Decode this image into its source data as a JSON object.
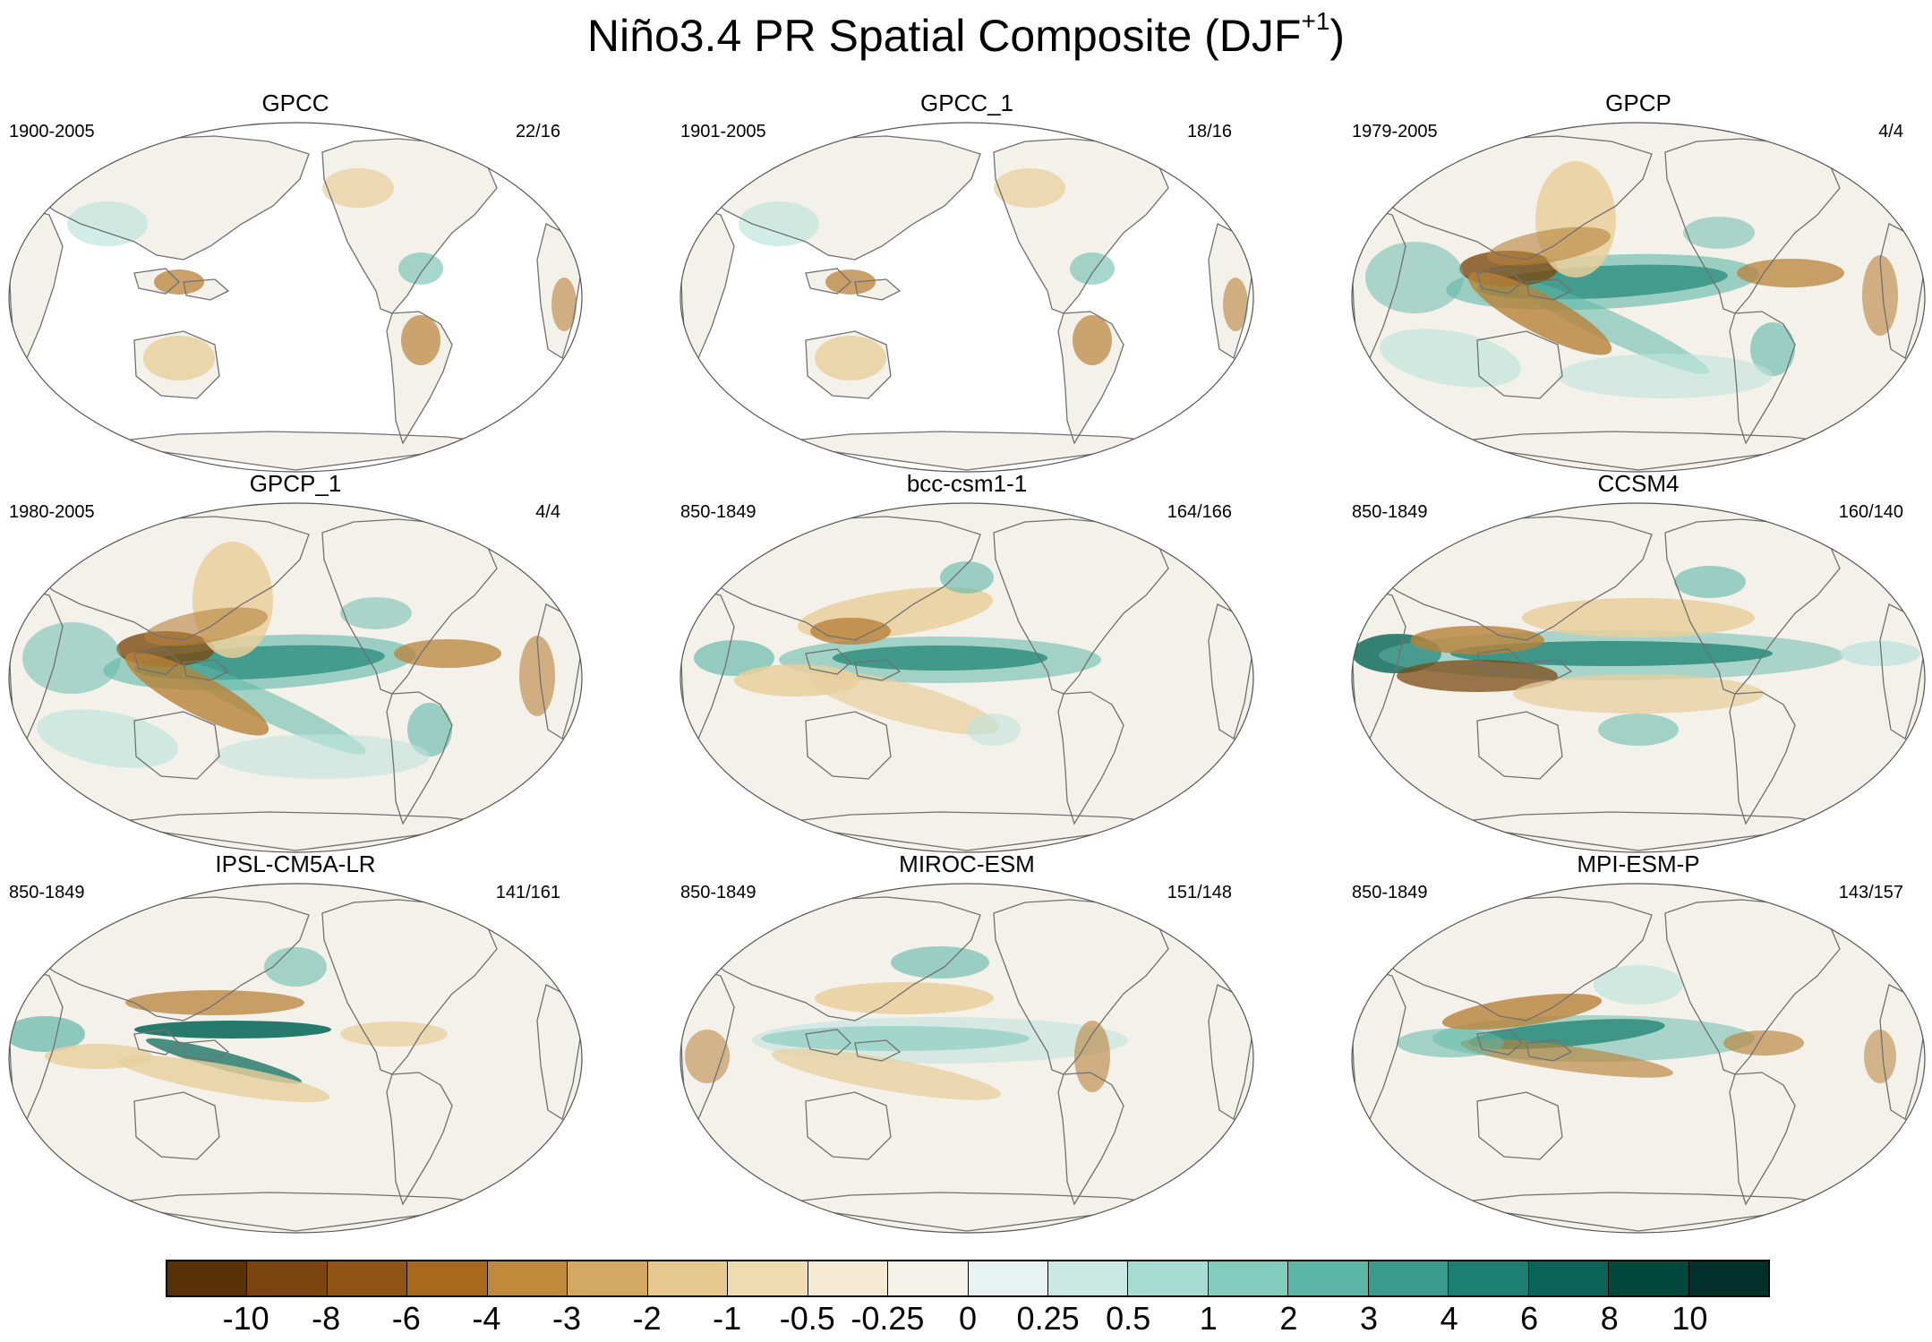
{
  "figure": {
    "title_main": "Niño3.4 PR Spatial Composite (DJF",
    "title_sup": "+1",
    "title_close": ")"
  },
  "palette": {
    "brown_strong": "#7a4a12",
    "brown_mid": "#b8823a",
    "brown_light": "#e8cf9c",
    "teal_light": "#bfe4dc",
    "teal_mid": "#5fb8a8",
    "teal_strong": "#0f6d5e",
    "land_outline": "#707070",
    "ocean_neutral": "#f4f1ea"
  },
  "panels": [
    {
      "name": "GPCC",
      "period": "1900-2005",
      "counts": "22/16",
      "land_only": true
    },
    {
      "name": "GPCC_1",
      "period": "1901-2005",
      "counts": "18/16",
      "land_only": true
    },
    {
      "name": "GPCP",
      "period": "1979-2005",
      "counts": "4/4",
      "land_only": false
    },
    {
      "name": "GPCP_1",
      "period": "1980-2005",
      "counts": "4/4",
      "land_only": false
    },
    {
      "name": "bcc-csm1-1",
      "period": "850-1849",
      "counts": "164/166",
      "land_only": false
    },
    {
      "name": "CCSM4",
      "period": "850-1849",
      "counts": "160/140",
      "land_only": false
    },
    {
      "name": "IPSL-CM5A-LR",
      "period": "850-1849",
      "counts": "141/161",
      "land_only": false
    },
    {
      "name": "MIROC-ESM",
      "period": "850-1849",
      "counts": "151/148",
      "land_only": false
    },
    {
      "name": "MPI-ESM-P",
      "period": "850-1849",
      "counts": "143/157",
      "land_only": false
    }
  ],
  "colorbar": {
    "colors": [
      "#5a3208",
      "#7a4510",
      "#8f5516",
      "#a8691f",
      "#c08a3c",
      "#d3a862",
      "#e5c98f",
      "#efdcb3",
      "#f5ead2",
      "#f4f1ea",
      "#e7f3f0",
      "#cbe9e3",
      "#a7dcd2",
      "#82cbbd",
      "#5bb6a6",
      "#3a9a8b",
      "#1d7f71",
      "#0b6458",
      "#03473d",
      "#01302a"
    ],
    "labels": [
      "-10",
      "-8",
      "-6",
      "-4",
      "-3",
      "-2",
      "-1",
      "-0.5",
      "-0.25",
      "0",
      "0.25",
      "0.5",
      "1",
      "2",
      "3",
      "4",
      "6",
      "8",
      "10"
    ]
  }
}
